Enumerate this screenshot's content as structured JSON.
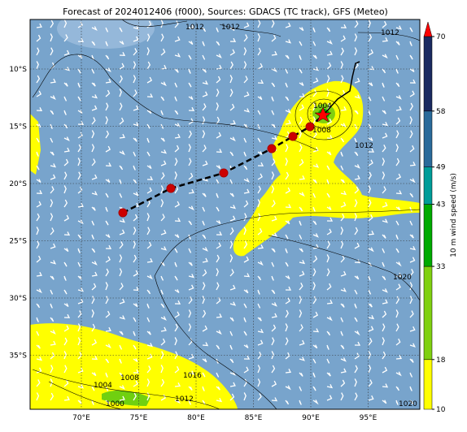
{
  "map": {
    "title": "Forecast of 2024012406 (f000), Sources: GDACS (TC track), GFS (Meteo)",
    "lon_ticks": [
      {
        "value": 70,
        "label": "70°E"
      },
      {
        "value": 75,
        "label": "75°E"
      },
      {
        "value": 80,
        "label": "80°E"
      },
      {
        "value": 85,
        "label": "85°E"
      },
      {
        "value": 90,
        "label": "90°E"
      },
      {
        "value": 95,
        "label": "95°E"
      }
    ],
    "lat_ticks": [
      {
        "value": -10,
        "label": "10°S"
      },
      {
        "value": -15,
        "label": "15°S"
      },
      {
        "value": -20,
        "label": "20°S"
      },
      {
        "value": -25,
        "label": "25°S"
      },
      {
        "value": -30,
        "label": "30°S"
      },
      {
        "value": -35,
        "label": "35°S"
      }
    ],
    "colorbar": {
      "label": "10 m wind speed (m/s)",
      "ticks": [
        10,
        18,
        33,
        43,
        49,
        58,
        70
      ],
      "colors": [
        "#ffff00",
        "#80d010",
        "#00aa00",
        "#009c98",
        "#2a6a9a",
        "#1a2a60"
      ],
      "over_color": "#ff0000"
    },
    "isobar_labels": [
      "1012",
      "1012",
      "1012",
      "1004",
      "1008",
      "1012",
      "1020",
      "1016",
      "1008",
      "1004",
      "1012",
      "1000",
      "1020"
    ]
  }
}
